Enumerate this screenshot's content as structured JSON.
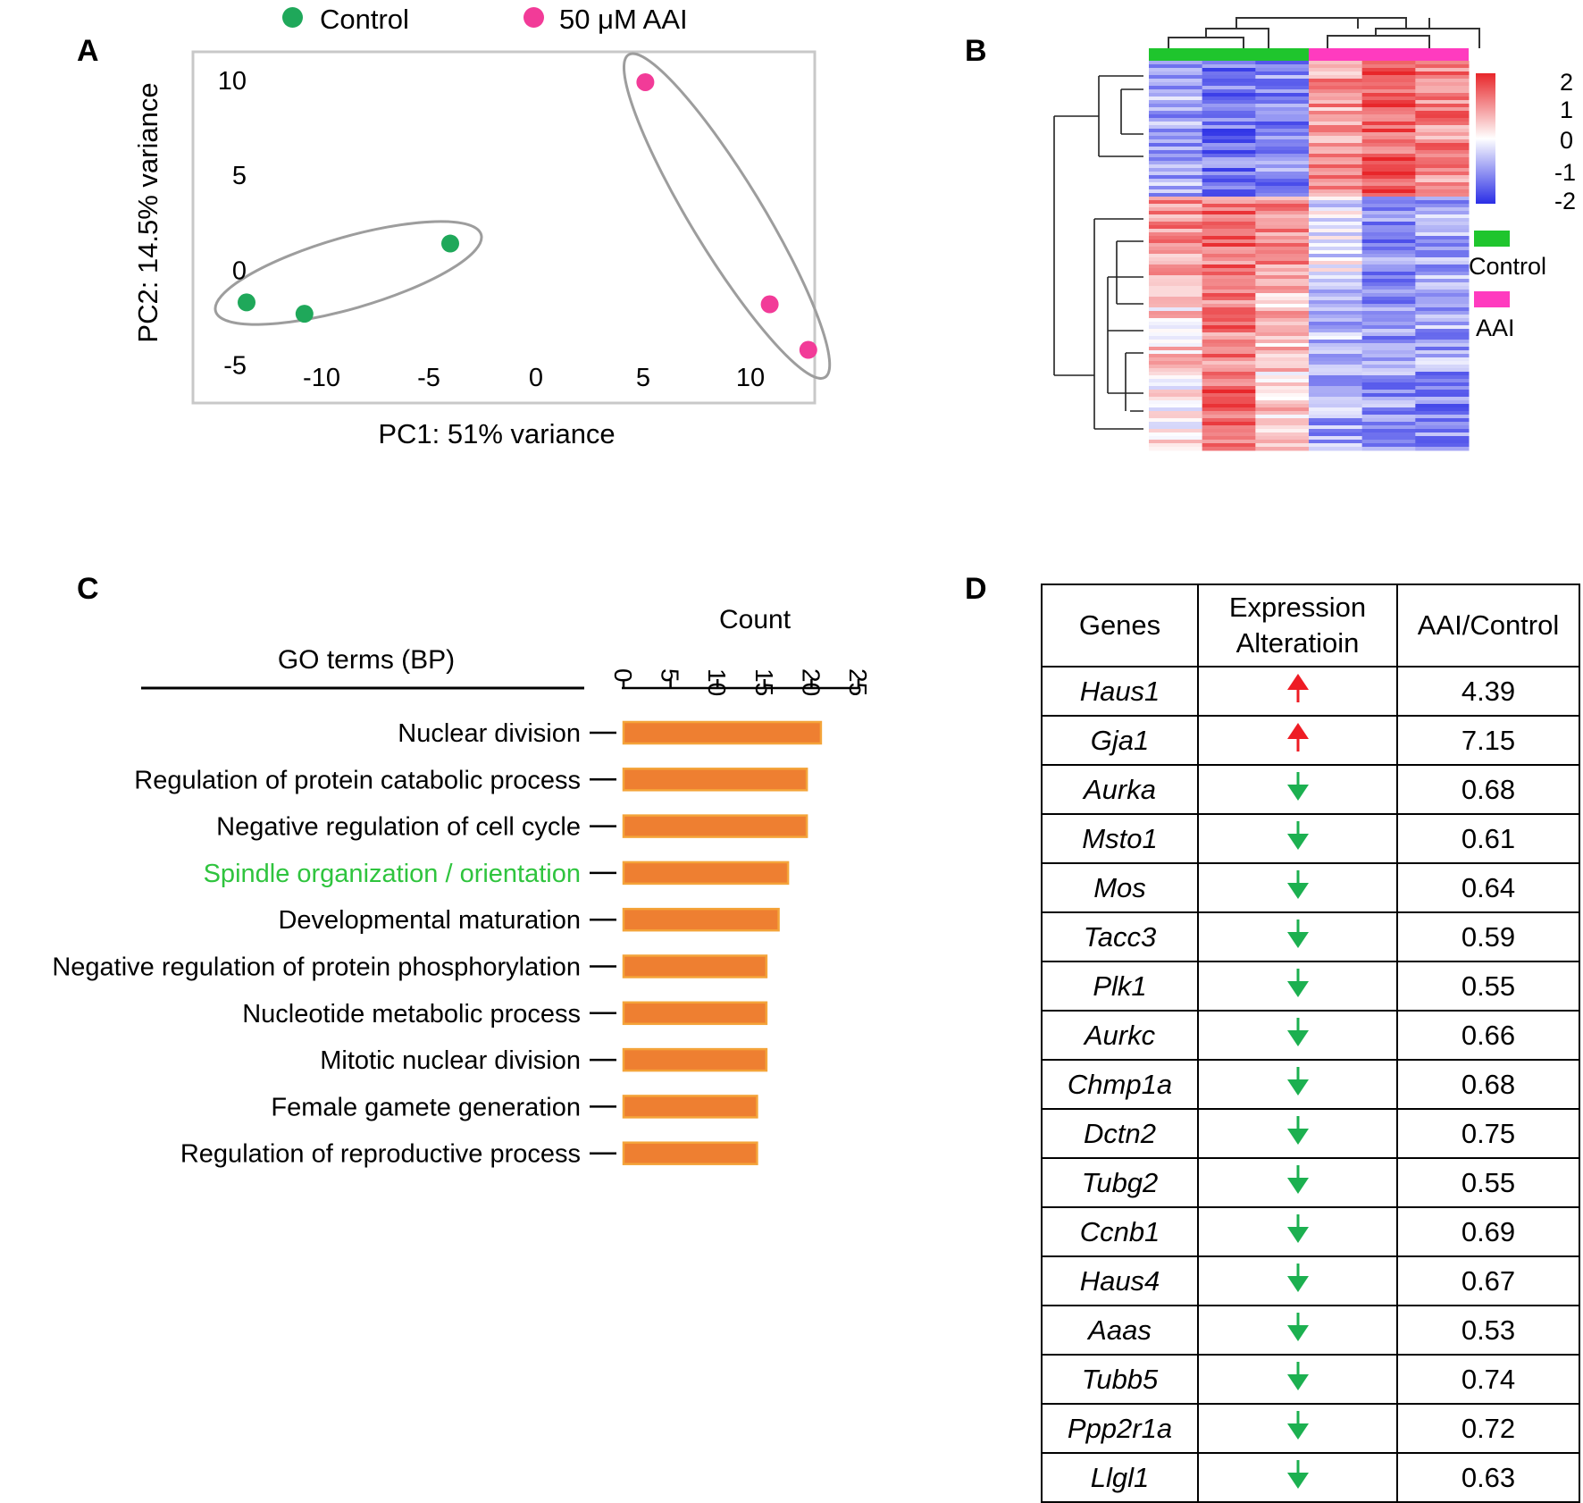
{
  "panels": {
    "a": "A",
    "b": "B",
    "c": "C",
    "d": "D"
  },
  "colors": {
    "control": "#1fa85a",
    "aai": "#f23b98",
    "bar": "#ee7f31",
    "bar_border": "#f4a43a",
    "up": "#ee1c24",
    "down": "#1cb050",
    "highlight": "#2fc43e",
    "heat_high": "#e8262a",
    "heat_mid": "#ffffff",
    "heat_low": "#2a2ee6"
  },
  "legend": {
    "control": "Control",
    "aai": "50 μM AAI"
  },
  "chart_data": [
    {
      "type": "scatter",
      "panel": "A",
      "title": "",
      "xlabel": "PC1: 51% variance",
      "ylabel": "PC2: 14.5% variance",
      "xlim": [
        -16,
        13
      ],
      "ylim": [
        -7,
        11.5
      ],
      "xticks": [
        -10,
        -5,
        0,
        5,
        10
      ],
      "yticks": [
        10,
        5,
        0,
        -5
      ],
      "series": [
        {
          "name": "Control",
          "color": "#1fa85a",
          "points": [
            [
              -13.5,
              -1.7
            ],
            [
              -10.8,
              -2.3
            ],
            [
              -4.0,
              1.4
            ]
          ]
        },
        {
          "name": "50 μM AAI",
          "color": "#f23b98",
          "points": [
            [
              5.1,
              9.9
            ],
            [
              10.9,
              -1.8
            ],
            [
              12.7,
              -4.2
            ]
          ]
        }
      ],
      "ellipses": [
        "Control",
        "50 μM AAI"
      ]
    },
    {
      "type": "heatmap",
      "panel": "B",
      "column_groups": [
        {
          "name": "Control",
          "color": "#1fc52d",
          "columns": 3
        },
        {
          "name": "AAI",
          "color": "#ff3bbf",
          "columns": 3
        }
      ],
      "color_scale": {
        "ticks": [
          "2",
          "1",
          "0",
          "-1",
          "-2"
        ],
        "min": -2,
        "max": 2
      },
      "legend": [
        "Control",
        "AAI"
      ],
      "blocks": [
        {
          "row_fraction": 0.35,
          "values": [
            -0.8,
            -1.3,
            -1.1,
            0.9,
            1.5,
            1.1
          ]
        },
        {
          "row_fraction": 0.23,
          "values": [
            1.0,
            1.3,
            1.1,
            -0.2,
            -1.1,
            -0.8
          ]
        },
        {
          "row_fraction": 0.22,
          "values": [
            0.4,
            1.2,
            0.6,
            -0.7,
            -0.9,
            -0.8
          ]
        },
        {
          "row_fraction": 0.2,
          "values": [
            0.1,
            1.4,
            0.4,
            -0.8,
            -1.0,
            -1.1
          ]
        }
      ]
    },
    {
      "type": "bar",
      "panel": "C",
      "orientation": "horizontal",
      "title": "GO terms (BP)",
      "xlabel": "Count",
      "xlim": [
        0,
        25
      ],
      "xticks": [
        "0",
        "5",
        "10",
        "15",
        "20",
        "25"
      ],
      "categories": [
        "Nuclear division",
        "Regulation of protein catabolic process",
        "Negative regulation of cell cycle",
        "Spindle organization / orientation",
        "Developmental maturation",
        "Negative regulation of protein phosphorylation",
        "Nucleotide metabolic process",
        "Mitotic nuclear division",
        "Female gamete generation",
        "Regulation of reproductive process"
      ],
      "values": [
        21,
        19.5,
        19.5,
        17.5,
        16.5,
        15.2,
        15.2,
        15.2,
        14.2,
        14.2
      ],
      "highlighted": [
        "Spindle organization / orientation"
      ]
    },
    {
      "type": "table",
      "panel": "D",
      "headers": {
        "genes": "Genes",
        "expr_line1": "Expression",
        "expr_line2": "Alteratioin",
        "ratio": "AAI/Control"
      },
      "rows": [
        {
          "gene": "Haus1",
          "dir": "up",
          "ratio": "4.39"
        },
        {
          "gene": "Gja1",
          "dir": "up",
          "ratio": "7.15"
        },
        {
          "gene": "Aurka",
          "dir": "down",
          "ratio": "0.68"
        },
        {
          "gene": "Msto1",
          "dir": "down",
          "ratio": "0.61"
        },
        {
          "gene": "Mos",
          "dir": "down",
          "ratio": "0.64"
        },
        {
          "gene": "Tacc3",
          "dir": "down",
          "ratio": "0.59"
        },
        {
          "gene": "Plk1",
          "dir": "down",
          "ratio": "0.55"
        },
        {
          "gene": "Aurkc",
          "dir": "down",
          "ratio": "0.66"
        },
        {
          "gene": "Chmp1a",
          "dir": "down",
          "ratio": "0.68"
        },
        {
          "gene": "Dctn2",
          "dir": "down",
          "ratio": "0.75"
        },
        {
          "gene": "Tubg2",
          "dir": "down",
          "ratio": "0.55"
        },
        {
          "gene": "Ccnb1",
          "dir": "down",
          "ratio": "0.69"
        },
        {
          "gene": "Haus4",
          "dir": "down",
          "ratio": "0.67"
        },
        {
          "gene": "Aaas",
          "dir": "down",
          "ratio": "0.53"
        },
        {
          "gene": "Tubb5",
          "dir": "down",
          "ratio": "0.74"
        },
        {
          "gene": "Ppp2r1a",
          "dir": "down",
          "ratio": "0.72"
        },
        {
          "gene": "Llgl1",
          "dir": "down",
          "ratio": "0.63"
        }
      ]
    }
  ]
}
